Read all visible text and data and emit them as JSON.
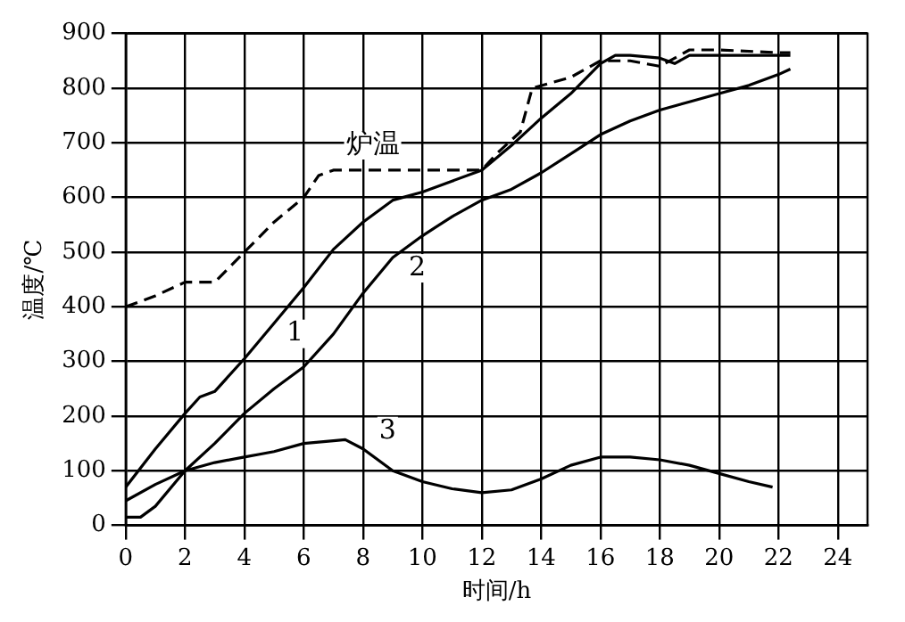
{
  "chart_data": {
    "type": "line",
    "xlabel": "时间/h",
    "ylabel": "温度/℃",
    "xlim": [
      0,
      25
    ],
    "xticks": [
      0,
      2,
      4,
      6,
      8,
      10,
      12,
      14,
      16,
      18,
      20,
      22,
      24
    ],
    "ylim": [
      0,
      900
    ],
    "yticks": [
      0,
      100,
      200,
      300,
      400,
      500,
      600,
      700,
      800,
      900
    ],
    "grid": true,
    "legend": false,
    "marker": "none",
    "series": [
      {
        "name": "炉温",
        "color": "#000000",
        "line_style": "dashed",
        "x": [
          0,
          1,
          2,
          3,
          4,
          5,
          6,
          6.5,
          7,
          8,
          10,
          12,
          12.5,
          13.3,
          13.7,
          15,
          16,
          17,
          18,
          19,
          20,
          22,
          22.4
        ],
        "values": [
          400,
          420,
          445,
          445,
          500,
          555,
          600,
          640,
          650,
          650,
          650,
          650,
          680,
          720,
          800,
          820,
          850,
          850,
          840,
          870,
          870,
          865,
          865
        ]
      },
      {
        "name": "1",
        "color": "#000000",
        "line_style": "solid",
        "x": [
          0,
          1,
          2,
          2.5,
          3,
          4,
          5,
          6,
          7,
          8,
          9,
          10,
          11,
          12,
          13,
          14,
          15,
          16,
          16.5,
          17,
          18,
          18.5,
          19,
          20,
          22,
          22.4
        ],
        "values": [
          70,
          140,
          205,
          235,
          245,
          305,
          370,
          435,
          505,
          555,
          595,
          610,
          630,
          650,
          695,
          745,
          790,
          845,
          860,
          860,
          855,
          845,
          860,
          860,
          860,
          860
        ]
      },
      {
        "name": "2",
        "color": "#000000",
        "line_style": "solid",
        "x": [
          0,
          0.5,
          1,
          2,
          3,
          4,
          5,
          6,
          7,
          8,
          9,
          10,
          11,
          12,
          13,
          14,
          15,
          16,
          17,
          18,
          19,
          20,
          21,
          22,
          22.4
        ],
        "values": [
          15,
          15,
          35,
          100,
          150,
          205,
          250,
          290,
          350,
          425,
          490,
          530,
          565,
          595,
          615,
          645,
          680,
          715,
          740,
          760,
          775,
          790,
          805,
          825,
          835
        ]
      },
      {
        "name": "3",
        "color": "#000000",
        "line_style": "solid",
        "x": [
          0,
          1,
          2,
          3,
          4,
          5,
          6,
          7,
          7.4,
          8,
          9,
          10,
          11,
          12,
          13,
          14,
          15,
          16,
          17,
          18,
          19,
          20,
          21,
          21.8
        ],
        "values": [
          45,
          75,
          100,
          115,
          125,
          135,
          150,
          155,
          157,
          140,
          100,
          80,
          67,
          60,
          65,
          85,
          110,
          125,
          125,
          120,
          110,
          95,
          80,
          70
        ]
      }
    ]
  }
}
